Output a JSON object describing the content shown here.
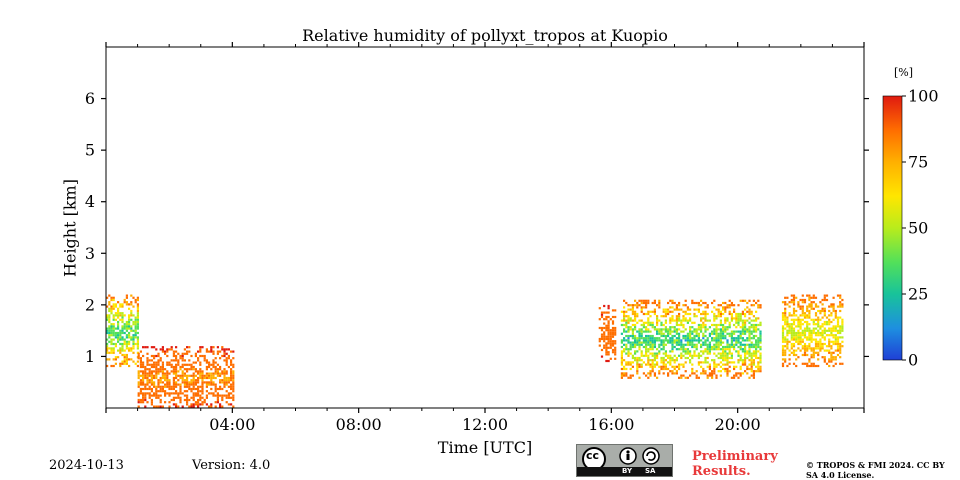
{
  "header": {
    "title": "Relative humidity of pollyxt_tropos at Kuopio"
  },
  "footer": {
    "date": "2024-10-13",
    "version": "Version: 4.0",
    "preliminary": "Preliminary Results.",
    "copyright": "© TROPOS & FMI 2024. CC BY SA 4.0 License.",
    "license_badge": {
      "icon": "cc-by-sa-icon",
      "cc_text": "cc",
      "by_text": "BY",
      "sa_text": "SA"
    }
  },
  "colors": {
    "colormap": [
      "#1f3fd6",
      "#1e8fe0",
      "#18c39a",
      "#52e05a",
      "#b8ec1c",
      "#ffe600",
      "#ffb000",
      "#ff6e00",
      "#e01a10"
    ],
    "prelim": "#e8393a"
  },
  "chart_data": {
    "type": "heatmap",
    "title": "Relative humidity of pollyxt_tropos at Kuopio",
    "xlabel": "Time [UTC]",
    "ylabel": "Height [km]",
    "xlim": [
      0,
      24
    ],
    "ylim": [
      0,
      7
    ],
    "x_ticks": [
      4,
      8,
      12,
      16,
      20
    ],
    "x_tick_labels": [
      "04:00",
      "08:00",
      "12:00",
      "16:00",
      "20:00"
    ],
    "y_ticks": [
      1,
      2,
      3,
      4,
      5,
      6
    ],
    "y_tick_labels": [
      "1",
      "2",
      "3",
      "4",
      "5",
      "6"
    ],
    "colorbar": {
      "label": "[%]",
      "range": [
        0,
        100
      ],
      "ticks": [
        0,
        25,
        50,
        75,
        100
      ],
      "tick_labels": [
        "0",
        "25",
        "50",
        "75",
        "100"
      ]
    },
    "regions": [
      {
        "name": "night-low-cloud",
        "t_start": 0.0,
        "t_end": 1.0,
        "h_bottom": 0.8,
        "h_top": 2.2,
        "rh_core": 30,
        "rh_edge": 90
      },
      {
        "name": "night-trailing-scatter",
        "t_start": 1.0,
        "t_end": 4.0,
        "h_bottom": 0.0,
        "h_top": 1.2,
        "rh_core": 80,
        "rh_edge": 95
      },
      {
        "name": "isolated-16h",
        "t_start": 15.6,
        "t_end": 16.1,
        "h_bottom": 0.9,
        "h_top": 2.0,
        "rh_core": 85,
        "rh_edge": 95
      },
      {
        "name": "evening-cloud-layer",
        "t_start": 16.3,
        "t_end": 20.7,
        "h_bottom": 0.6,
        "h_top": 2.1,
        "rh_core": 30,
        "rh_edge": 90
      },
      {
        "name": "late-evening-patches",
        "t_start": 21.4,
        "t_end": 23.3,
        "h_bottom": 0.8,
        "h_top": 2.2,
        "rh_core": 55,
        "rh_edge": 90
      }
    ]
  }
}
